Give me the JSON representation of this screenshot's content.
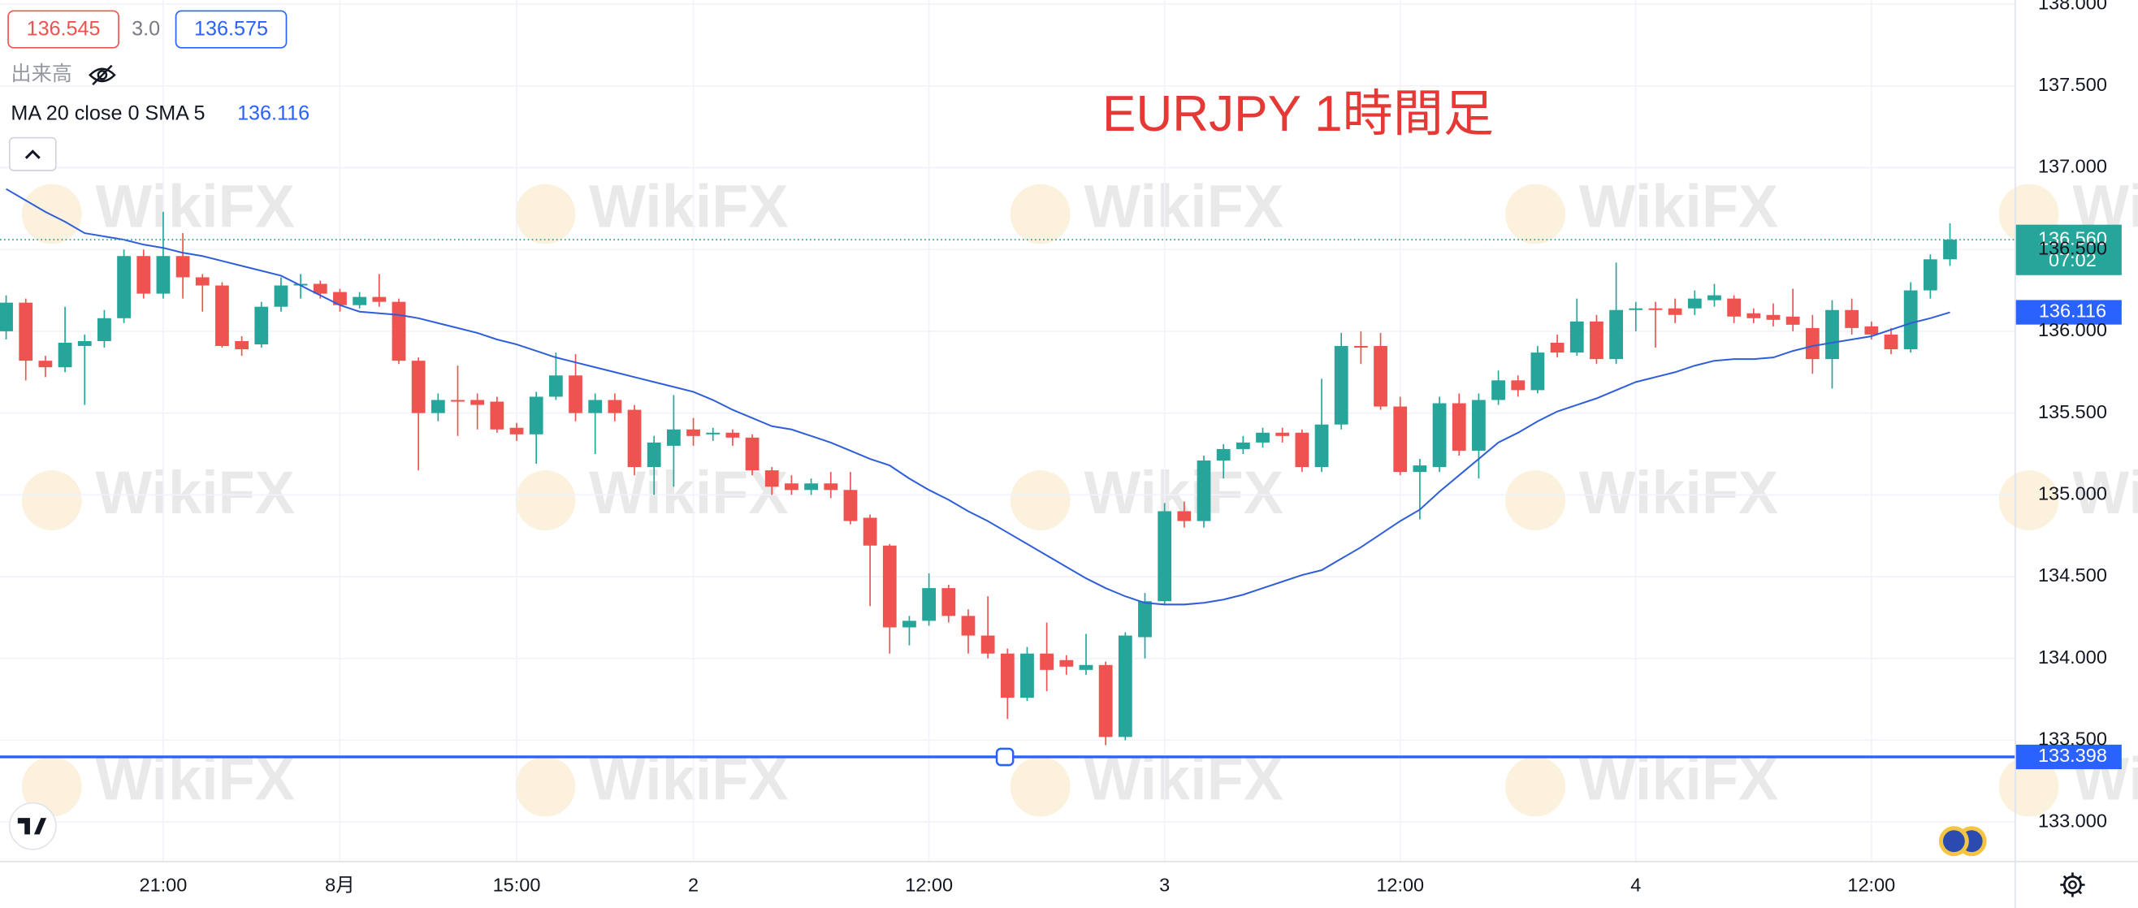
{
  "chart_data": {
    "type": "candlestick",
    "title": "EURJPY 1時間足",
    "header": {
      "bid": 136.545,
      "spread": "3.0",
      "ask": 136.575,
      "volume_label": "出来高"
    },
    "watermark": "WikiFX",
    "up_color": "#26a69a",
    "down_color": "#ef5350",
    "categories": [
      null,
      null,
      null,
      null,
      null,
      null,
      null,
      null,
      "21:00",
      null,
      null,
      null,
      null,
      null,
      null,
      null,
      null,
      "8月",
      null,
      null,
      null,
      null,
      null,
      null,
      null,
      null,
      "15:00",
      null,
      null,
      null,
      null,
      null,
      null,
      null,
      null,
      "2",
      null,
      null,
      null,
      null,
      null,
      null,
      null,
      null,
      null,
      null,
      null,
      "12:00",
      null,
      null,
      null,
      null,
      null,
      null,
      null,
      null,
      null,
      null,
      null,
      "3",
      null,
      null,
      null,
      null,
      null,
      null,
      null,
      null,
      null,
      null,
      null,
      "12:00",
      null,
      null,
      null,
      null,
      null,
      null,
      null,
      null,
      null,
      null,
      null,
      "4",
      null,
      null,
      null,
      null,
      null,
      null,
      null,
      null,
      null,
      null,
      null,
      "12:00",
      null,
      null,
      null,
      null
    ],
    "open": [
      136.0,
      136.175,
      135.82,
      135.78,
      135.91,
      135.94,
      136.08,
      136.46,
      136.23,
      136.46,
      136.33,
      136.28,
      135.94,
      135.92,
      136.15,
      136.28,
      136.29,
      136.24,
      136.16,
      136.21,
      136.18,
      135.82,
      135.5,
      135.58,
      135.58,
      135.57,
      135.41,
      135.37,
      135.6,
      135.73,
      135.5,
      135.58,
      135.52,
      135.17,
      135.3,
      135.4,
      135.37,
      135.38,
      135.35,
      135.15,
      135.07,
      135.03,
      135.07,
      135.03,
      134.86,
      134.69,
      134.19,
      134.23,
      134.43,
      134.26,
      134.14,
      134.03,
      133.76,
      134.03,
      133.99,
      133.93,
      133.96,
      133.52,
      134.13,
      134.35,
      134.9,
      134.84,
      135.21,
      135.28,
      135.32,
      135.38,
      135.38,
      135.17,
      135.43,
      135.91,
      135.91,
      135.54,
      135.14,
      135.17,
      135.56,
      135.27,
      135.58,
      135.7,
      135.64,
      135.93,
      135.87,
      136.06,
      135.83,
      136.13,
      136.14,
      136.14,
      136.14,
      136.19,
      136.2,
      136.11,
      136.1,
      136.09,
      136.02,
      135.83,
      136.13,
      136.03,
      135.98,
      135.89,
      136.25,
      136.44
    ],
    "high": [
      136.22,
      136.2,
      135.85,
      136.15,
      135.98,
      136.13,
      136.5,
      136.5,
      136.73,
      136.6,
      136.35,
      136.3,
      135.97,
      136.18,
      136.33,
      136.35,
      136.31,
      136.26,
      136.24,
      136.35,
      136.2,
      135.84,
      135.62,
      135.79,
      135.62,
      135.6,
      135.44,
      135.63,
      135.87,
      135.86,
      135.62,
      135.62,
      135.55,
      135.36,
      135.61,
      135.47,
      135.41,
      135.4,
      135.37,
      135.17,
      135.12,
      135.1,
      135.14,
      135.14,
      134.88,
      134.7,
      134.26,
      134.52,
      134.45,
      134.3,
      134.38,
      134.06,
      134.07,
      134.22,
      134.02,
      134.15,
      133.98,
      134.16,
      134.4,
      134.95,
      134.96,
      135.24,
      135.31,
      135.36,
      135.41,
      135.41,
      135.4,
      135.71,
      135.99,
      136.0,
      135.99,
      135.6,
      135.22,
      135.6,
      135.62,
      135.62,
      135.76,
      135.73,
      135.91,
      135.98,
      136.2,
      136.1,
      136.42,
      136.18,
      136.18,
      136.2,
      136.25,
      136.29,
      136.22,
      136.14,
      136.17,
      136.26,
      136.1,
      136.19,
      136.2,
      136.06,
      136.02,
      136.3,
      136.47,
      136.66
    ],
    "low": [
      135.95,
      135.7,
      135.72,
      135.75,
      135.55,
      135.9,
      136.05,
      136.2,
      136.2,
      136.2,
      136.12,
      135.9,
      135.85,
      135.9,
      136.12,
      136.2,
      136.2,
      136.12,
      136.14,
      136.15,
      135.8,
      135.15,
      135.45,
      135.36,
      135.4,
      135.38,
      135.33,
      135.19,
      135.58,
      135.45,
      135.25,
      135.45,
      135.12,
      135.0,
      135.05,
      135.3,
      135.33,
      135.3,
      135.12,
      135.0,
      135.0,
      135.0,
      134.98,
      134.82,
      134.32,
      134.03,
      134.08,
      134.2,
      134.22,
      134.03,
      134.0,
      133.63,
      133.74,
      133.8,
      133.9,
      133.9,
      133.47,
      133.5,
      134.0,
      134.33,
      134.8,
      134.8,
      135.1,
      135.25,
      135.29,
      135.32,
      135.14,
      135.14,
      135.4,
      135.8,
      135.52,
      135.12,
      134.85,
      135.14,
      135.24,
      135.1,
      135.55,
      135.6,
      135.62,
      135.84,
      135.85,
      135.8,
      135.8,
      136.0,
      135.9,
      136.05,
      136.1,
      136.15,
      136.05,
      136.05,
      136.03,
      136.0,
      135.74,
      135.65,
      135.98,
      135.95,
      135.86,
      135.87,
      136.2,
      136.4
    ],
    "close": [
      136.175,
      135.82,
      135.78,
      135.93,
      135.94,
      136.08,
      136.46,
      136.23,
      136.46,
      136.33,
      136.28,
      135.91,
      135.89,
      136.15,
      136.28,
      136.29,
      136.23,
      136.16,
      136.21,
      136.18,
      135.82,
      135.5,
      135.58,
      135.57,
      135.55,
      135.4,
      135.37,
      135.6,
      135.73,
      135.5,
      135.58,
      135.5,
      135.17,
      135.32,
      135.4,
      135.36,
      135.38,
      135.35,
      135.15,
      135.05,
      135.03,
      135.07,
      135.03,
      134.84,
      134.69,
      134.19,
      134.23,
      134.43,
      134.26,
      134.14,
      134.03,
      133.76,
      134.03,
      133.93,
      133.95,
      133.96,
      133.52,
      134.14,
      134.35,
      134.9,
      134.84,
      135.21,
      135.28,
      135.32,
      135.38,
      135.36,
      135.17,
      135.43,
      135.91,
      135.9,
      135.54,
      135.14,
      135.18,
      135.56,
      135.27,
      135.58,
      135.7,
      135.64,
      135.87,
      135.87,
      136.06,
      135.83,
      136.13,
      136.14,
      136.13,
      136.1,
      136.2,
      136.22,
      136.09,
      136.08,
      136.07,
      136.04,
      135.83,
      136.13,
      136.02,
      135.98,
      135.89,
      136.25,
      136.44,
      136.56
    ],
    "ma": {
      "name": "MA 20 close 0 SMA 5",
      "color": "#2f5fd8",
      "values": [
        136.87,
        136.8,
        136.73,
        136.67,
        136.6,
        136.58,
        136.56,
        136.53,
        136.51,
        136.48,
        136.46,
        136.43,
        136.4,
        136.37,
        136.34,
        136.28,
        136.22,
        136.16,
        136.12,
        136.11,
        136.1,
        136.08,
        136.05,
        136.02,
        135.99,
        135.95,
        135.92,
        135.88,
        135.84,
        135.81,
        135.78,
        135.75,
        135.72,
        135.69,
        135.66,
        135.63,
        135.58,
        135.52,
        135.47,
        135.42,
        135.4,
        135.36,
        135.32,
        135.27,
        135.22,
        135.18,
        135.1,
        135.03,
        134.97,
        134.9,
        134.84,
        134.77,
        134.7,
        134.63,
        134.56,
        134.49,
        134.43,
        134.38,
        134.34,
        134.33,
        134.33,
        134.34,
        134.36,
        134.39,
        134.43,
        134.47,
        134.51,
        134.54,
        134.61,
        134.68,
        134.76,
        134.84,
        134.91,
        135.02,
        135.12,
        135.22,
        135.32,
        135.38,
        135.45,
        135.51,
        135.55,
        135.59,
        135.64,
        135.69,
        135.72,
        135.75,
        135.79,
        135.82,
        135.83,
        135.83,
        135.84,
        135.88,
        135.91,
        135.93,
        135.95,
        135.97,
        136.01,
        136.05,
        136.08,
        136.116
      ]
    },
    "price_line": {
      "value": 133.398,
      "color": "#2962ff"
    },
    "last_price": {
      "value": 136.56,
      "label": "136.560"
    },
    "countdown": "07:02",
    "ylim": [
      132.758,
      138.025
    ],
    "yticks": [
      {
        "value": 133,
        "label": "133.000"
      },
      {
        "value": 133.5,
        "label": "133.500"
      },
      {
        "value": 134,
        "label": "134.000"
      },
      {
        "value": 134.5,
        "label": "134.500"
      },
      {
        "value": 135,
        "label": "135.000"
      },
      {
        "value": 135.5,
        "label": "135.500"
      },
      {
        "value": 136,
        "label": "136.000"
      },
      {
        "value": 136.5,
        "label": "136.500"
      },
      {
        "value": 137,
        "label": "137.000"
      },
      {
        "value": 137.5,
        "label": "137.500"
      },
      {
        "value": 138,
        "label": "138.000"
      }
    ],
    "grid": true
  }
}
